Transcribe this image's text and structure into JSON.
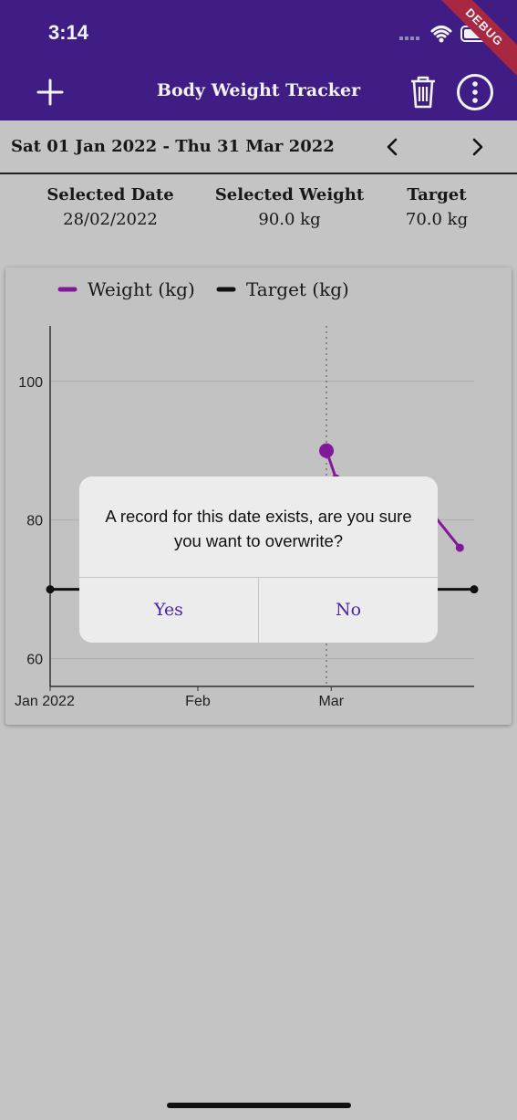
{
  "status": {
    "time": "3:14",
    "debug_label": "DEBUG"
  },
  "app_bar": {
    "title": "Body Weight Tracker",
    "add_icon": "plus-icon",
    "delete_icon": "trash-icon",
    "more_icon": "more-vert-icon",
    "background": "#431f8c"
  },
  "range": {
    "text": "Sat 01 Jan 2022 - Thu 31 Mar 2022"
  },
  "stats": {
    "date_label": "Selected Date",
    "date_value": "28/02/2022",
    "weight_label": "Selected Weight",
    "weight_value": "90.0 kg",
    "target_label": "Target",
    "target_value": "70.0 kg"
  },
  "chart_data": {
    "type": "line",
    "legend": [
      "Weight (kg)",
      "Target (kg)"
    ],
    "legend_position": "top",
    "x_ticks": [
      "Jan 2022",
      "Feb",
      "Mar"
    ],
    "y_ticks": [
      100,
      80,
      60
    ],
    "ylim": [
      56,
      108
    ],
    "selected_x": "2022-02-28",
    "series": [
      {
        "name": "Weight (kg)",
        "color": "#8a1aa3",
        "points": [
          {
            "x": "2022-02-28",
            "y": 90
          },
          {
            "x": "2022-03-02",
            "y": 86
          },
          {
            "x": "2022-03-21",
            "y": 82
          },
          {
            "x": "2022-03-28",
            "y": 76
          }
        ]
      },
      {
        "name": "Target (kg)",
        "color": "#111111",
        "points": [
          {
            "x": "2022-01-01",
            "y": 70
          },
          {
            "x": "2022-03-31",
            "y": 70
          }
        ]
      }
    ]
  },
  "dialog": {
    "message": "A record for this date exists, are you sure you want to overwrite?",
    "yes_label": "Yes",
    "no_label": "No"
  }
}
